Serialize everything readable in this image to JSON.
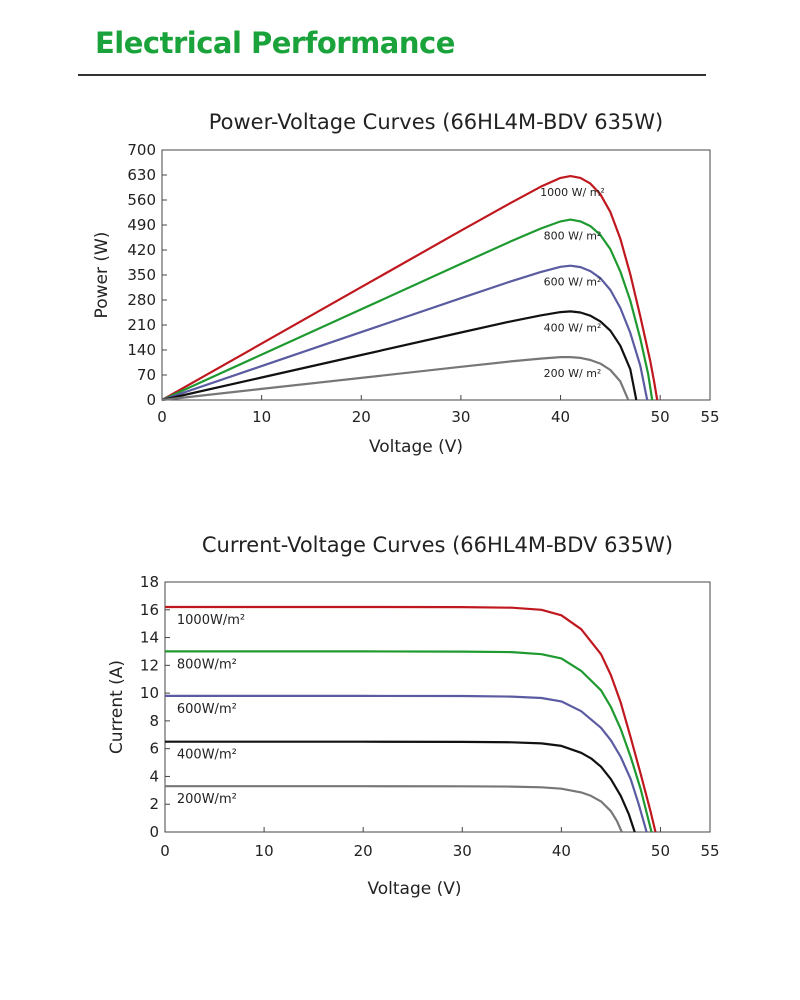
{
  "header": {
    "title": "Electrical Performance",
    "accent_color": "#1aa33a"
  },
  "chart_data": [
    {
      "type": "line",
      "title": "Power-Voltage Curves (66HL4M-BDV 635W)",
      "xlabel": "Voltage (V)",
      "ylabel": "Power (W)",
      "xlim": [
        0,
        55
      ],
      "ylim": [
        0,
        700
      ],
      "xticks": [
        "0",
        "10",
        "20",
        "30",
        "40",
        "50",
        "55"
      ],
      "yticks": [
        "0",
        "70",
        "140",
        "210",
        "280",
        "350",
        "420",
        "490",
        "560",
        "630",
        "700"
      ],
      "grid": false,
      "series": [
        {
          "name": "1000 W/ m²",
          "color": "#c0181f",
          "x": [
            0,
            10,
            20,
            30,
            35,
            38,
            40,
            41,
            42,
            43,
            44,
            45,
            46,
            47,
            48,
            49,
            49.4,
            49.7
          ],
          "y": [
            0,
            158,
            316,
            474,
            552,
            597,
            622,
            627,
            622,
            606,
            576,
            526,
            452,
            352,
            234,
            110,
            50,
            0
          ]
        },
        {
          "name": "800 W/ m²",
          "color": "#1e9a30",
          "x": [
            0,
            10,
            20,
            30,
            35,
            38,
            40,
            41,
            42,
            43,
            44,
            45,
            46,
            47,
            48,
            48.8,
            49.2
          ],
          "y": [
            0,
            127,
            254,
            381,
            444,
            480,
            500,
            505,
            500,
            487,
            462,
            422,
            360,
            278,
            172,
            72,
            0
          ]
        },
        {
          "name": "600 W/ m²",
          "color": "#5b5ba2",
          "x": [
            0,
            10,
            20,
            30,
            35,
            38,
            40,
            41,
            42,
            43,
            44,
            45,
            46,
            47,
            48,
            48.7
          ],
          "y": [
            0,
            95,
            190,
            285,
            332,
            358,
            373,
            376,
            372,
            361,
            341,
            308,
            258,
            188,
            96,
            0
          ]
        },
        {
          "name": "400 W/ m²",
          "color": "#111111",
          "x": [
            0,
            10,
            20,
            30,
            35,
            38,
            40,
            41,
            42,
            43,
            44,
            45,
            46,
            47,
            47.6
          ],
          "y": [
            0,
            63,
            126,
            189,
            220,
            237,
            246,
            248,
            245,
            236,
            220,
            194,
            152,
            86,
            0
          ]
        },
        {
          "name": "200 W/ m²",
          "color": "#777777",
          "x": [
            0,
            10,
            20,
            30,
            35,
            38,
            40,
            41,
            42,
            43,
            44,
            45,
            46,
            46.8
          ],
          "y": [
            0,
            31,
            62,
            93,
            108,
            116,
            120,
            120,
            118,
            112,
            102,
            84,
            52,
            0
          ]
        }
      ]
    },
    {
      "type": "line",
      "title": "Current-Voltage Curves (66HL4M-BDV 635W)",
      "xlabel": "Voltage (V)",
      "ylabel": "Current (A)",
      "xlim": [
        0,
        55
      ],
      "ylim": [
        0,
        18
      ],
      "xticks": [
        "0",
        "10",
        "20",
        "30",
        "40",
        "50",
        "55"
      ],
      "yticks": [
        "0",
        "2",
        "4",
        "6",
        "8",
        "10",
        "12",
        "14",
        "16",
        "18"
      ],
      "grid": false,
      "series": [
        {
          "name": "1000W/m²",
          "color": "#c0181f",
          "x": [
            0,
            20,
            30,
            35,
            38,
            40,
            42,
            44,
            45,
            46,
            47,
            48,
            49,
            49.5
          ],
          "y": [
            16.2,
            16.2,
            16.19,
            16.15,
            16.0,
            15.6,
            14.6,
            12.8,
            11.3,
            9.3,
            6.8,
            4.2,
            1.5,
            0
          ]
        },
        {
          "name": "800W/m²",
          "color": "#1e9a30",
          "x": [
            0,
            20,
            30,
            35,
            38,
            40,
            42,
            44,
            45,
            46,
            47,
            48,
            48.6,
            49.1
          ],
          "y": [
            13.0,
            13.0,
            12.99,
            12.95,
            12.8,
            12.5,
            11.6,
            10.2,
            9.0,
            7.4,
            5.4,
            3.1,
            1.4,
            0
          ]
        },
        {
          "name": "600W/m²",
          "color": "#5b5ba2",
          "x": [
            0,
            20,
            30,
            35,
            38,
            40,
            42,
            44,
            45,
            46,
            47,
            47.8,
            48.6
          ],
          "y": [
            9.8,
            9.8,
            9.79,
            9.75,
            9.65,
            9.4,
            8.7,
            7.5,
            6.6,
            5.4,
            3.8,
            2.0,
            0
          ]
        },
        {
          "name": "400W/m²",
          "color": "#111111",
          "x": [
            0,
            20,
            30,
            35,
            38,
            40,
            42,
            43,
            44,
            45,
            46,
            46.8,
            47.4
          ],
          "y": [
            6.5,
            6.5,
            6.49,
            6.46,
            6.38,
            6.2,
            5.7,
            5.3,
            4.7,
            3.8,
            2.6,
            1.3,
            0
          ]
        },
        {
          "name": "200W/m²",
          "color": "#777777",
          "x": [
            0,
            20,
            30,
            35,
            38,
            40,
            42,
            43,
            44,
            45,
            45.6,
            46.1
          ],
          "y": [
            3.3,
            3.3,
            3.29,
            3.27,
            3.22,
            3.12,
            2.85,
            2.6,
            2.2,
            1.5,
            0.8,
            0
          ]
        }
      ]
    }
  ]
}
